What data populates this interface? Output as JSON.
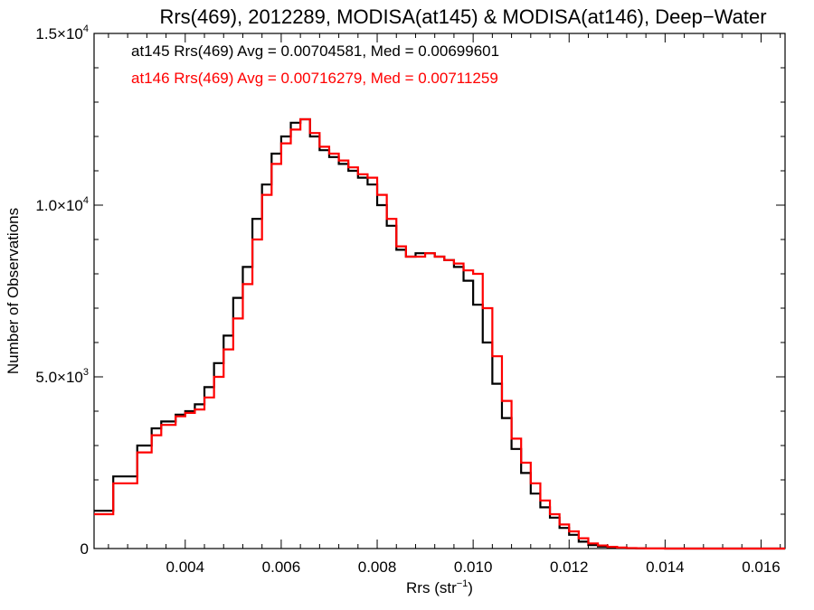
{
  "chart_data": {
    "type": "line",
    "style": "step-histogram",
    "title": "Rrs(469), 2012289, MODISA(at145) & MODISA(at146), Deep−Water",
    "xlabel": "Rrs (str",
    "xlabel_sup": "−1",
    "xlabel_close": ")",
    "ylabel": "Number of Observations",
    "xlim": [
      0.0021,
      0.0165
    ],
    "ylim": [
      0,
      15000
    ],
    "grid": false,
    "x_ticks": [
      {
        "value": 0.004,
        "label": "0.004"
      },
      {
        "value": 0.006,
        "label": "0.006"
      },
      {
        "value": 0.008,
        "label": "0.008"
      },
      {
        "value": 0.01,
        "label": "0.010"
      },
      {
        "value": 0.012,
        "label": "0.012"
      },
      {
        "value": 0.014,
        "label": "0.014"
      },
      {
        "value": 0.016,
        "label": "0.016"
      }
    ],
    "y_ticks": [
      {
        "value": 0,
        "base": "0",
        "exp": ""
      },
      {
        "value": 5000,
        "base": "5.0×10",
        "exp": "3"
      },
      {
        "value": 10000,
        "base": "1.0×10",
        "exp": "4"
      },
      {
        "value": 15000,
        "base": "1.5×10",
        "exp": "4"
      }
    ],
    "annotations": [
      {
        "text": "at145 Rrs(469) Avg = 0.00704581, Med = 0.00699601",
        "color": "#000000"
      },
      {
        "text": "at146 Rrs(469) Avg = 0.00716279, Med = 0.00711259",
        "color": "#ff0000"
      }
    ],
    "series": [
      {
        "name": "at145",
        "color": "#000000",
        "x": [
          0.0021,
          0.0025,
          0.003,
          0.0033,
          0.0035,
          0.0038,
          0.004,
          0.0042,
          0.0044,
          0.0046,
          0.0048,
          0.005,
          0.0052,
          0.0054,
          0.0056,
          0.0058,
          0.006,
          0.0062,
          0.0064,
          0.0066,
          0.0068,
          0.007,
          0.0072,
          0.0074,
          0.0076,
          0.0078,
          0.008,
          0.0082,
          0.0084,
          0.0086,
          0.0088,
          0.009,
          0.0092,
          0.0094,
          0.0096,
          0.0098,
          0.01,
          0.0102,
          0.0104,
          0.0106,
          0.0108,
          0.011,
          0.0112,
          0.0114,
          0.0116,
          0.0118,
          0.012,
          0.0122,
          0.0124,
          0.0126,
          0.0128,
          0.013,
          0.0132,
          0.0134,
          0.0136,
          0.014,
          0.0145,
          0.015,
          0.016,
          0.0165
        ],
        "values": [
          1100,
          2100,
          3000,
          3500,
          3700,
          3900,
          4000,
          4200,
          4700,
          5400,
          6200,
          7300,
          8200,
          9600,
          10600,
          11500,
          12000,
          12400,
          12500,
          12000,
          11600,
          11400,
          11200,
          11000,
          10800,
          10600,
          10000,
          9400,
          8700,
          8500,
          8600,
          8600,
          8500,
          8400,
          8200,
          7800,
          7100,
          6000,
          4800,
          3800,
          2900,
          2200,
          1600,
          1200,
          900,
          600,
          400,
          200,
          100,
          60,
          40,
          20,
          10,
          5,
          2,
          0,
          0,
          0,
          0,
          0
        ]
      },
      {
        "name": "at146",
        "color": "#ff0000",
        "x": [
          0.0021,
          0.0025,
          0.003,
          0.0033,
          0.0035,
          0.0038,
          0.004,
          0.0042,
          0.0044,
          0.0046,
          0.0048,
          0.005,
          0.0052,
          0.0054,
          0.0056,
          0.0058,
          0.006,
          0.0062,
          0.0064,
          0.0066,
          0.0068,
          0.007,
          0.0072,
          0.0074,
          0.0076,
          0.0078,
          0.008,
          0.0082,
          0.0084,
          0.0086,
          0.0088,
          0.009,
          0.0092,
          0.0094,
          0.0096,
          0.0098,
          0.01,
          0.0102,
          0.0104,
          0.0106,
          0.0108,
          0.011,
          0.0112,
          0.0114,
          0.0116,
          0.0118,
          0.012,
          0.0122,
          0.0124,
          0.0126,
          0.0128,
          0.013,
          0.0132,
          0.0134,
          0.0136,
          0.014,
          0.0145,
          0.015,
          0.016,
          0.0165
        ],
        "values": [
          1000,
          1900,
          2800,
          3300,
          3600,
          3850,
          3950,
          4050,
          4400,
          5000,
          5800,
          6700,
          7700,
          9000,
          10300,
          11200,
          11800,
          12200,
          12500,
          12100,
          11700,
          11500,
          11300,
          11100,
          10900,
          10800,
          10300,
          9600,
          8800,
          8500,
          8500,
          8600,
          8500,
          8400,
          8300,
          8100,
          8000,
          7000,
          5600,
          4300,
          3200,
          2500,
          1900,
          1400,
          1000,
          700,
          500,
          300,
          150,
          90,
          50,
          30,
          15,
          8,
          3,
          0,
          0,
          0,
          0,
          0
        ]
      }
    ]
  }
}
